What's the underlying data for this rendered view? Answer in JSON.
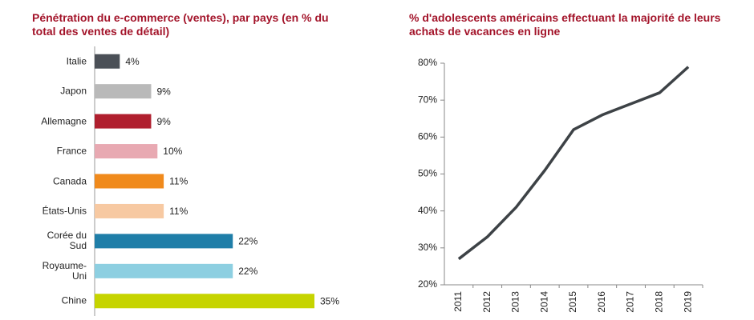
{
  "chart_data": [
    {
      "type": "bar",
      "orientation": "horizontal",
      "title": "Pénétration du e-commerce (ventes), par pays (en % du total des ventes de détail)",
      "categories": [
        "Italie",
        "Japon",
        "Allemagne",
        "France",
        "Canada",
        "États-Unis",
        "Corée du Sud",
        "Royaume-Uni",
        "Chine"
      ],
      "values": [
        4,
        9,
        9,
        10,
        11,
        11,
        22,
        22,
        35
      ],
      "value_labels": [
        "4%",
        "9%",
        "9%",
        "10%",
        "11%",
        "11%",
        "22%",
        "22%",
        "35%"
      ],
      "colors": [
        "#4b5057",
        "#b9b9b9",
        "#b01f2e",
        "#e8a9b2",
        "#f08a1c",
        "#f7c9a2",
        "#1f7ea8",
        "#8dcfe1",
        "#c6d400"
      ]
    },
    {
      "type": "line",
      "title": "% d'adolescents américains effectuant la majorité de leurs achats de vacances en ligne",
      "categories": [
        "2011",
        "2012",
        "2013",
        "2014",
        "2015",
        "2016",
        "2017",
        "2018",
        "2019"
      ],
      "values": [
        27,
        33,
        41,
        51,
        62,
        66,
        69,
        72,
        79
      ],
      "color": "#3d4246",
      "ylim": [
        20,
        80
      ],
      "yticks": [
        {
          "value": 20,
          "label": "20%"
        },
        {
          "value": 30,
          "label": "30%"
        },
        {
          "value": 40,
          "label": "40%"
        },
        {
          "value": 50,
          "label": "50%"
        },
        {
          "value": 60,
          "label": "60%"
        },
        {
          "value": 70,
          "label": "70%"
        },
        {
          "value": 80,
          "label": "80%"
        }
      ]
    }
  ]
}
